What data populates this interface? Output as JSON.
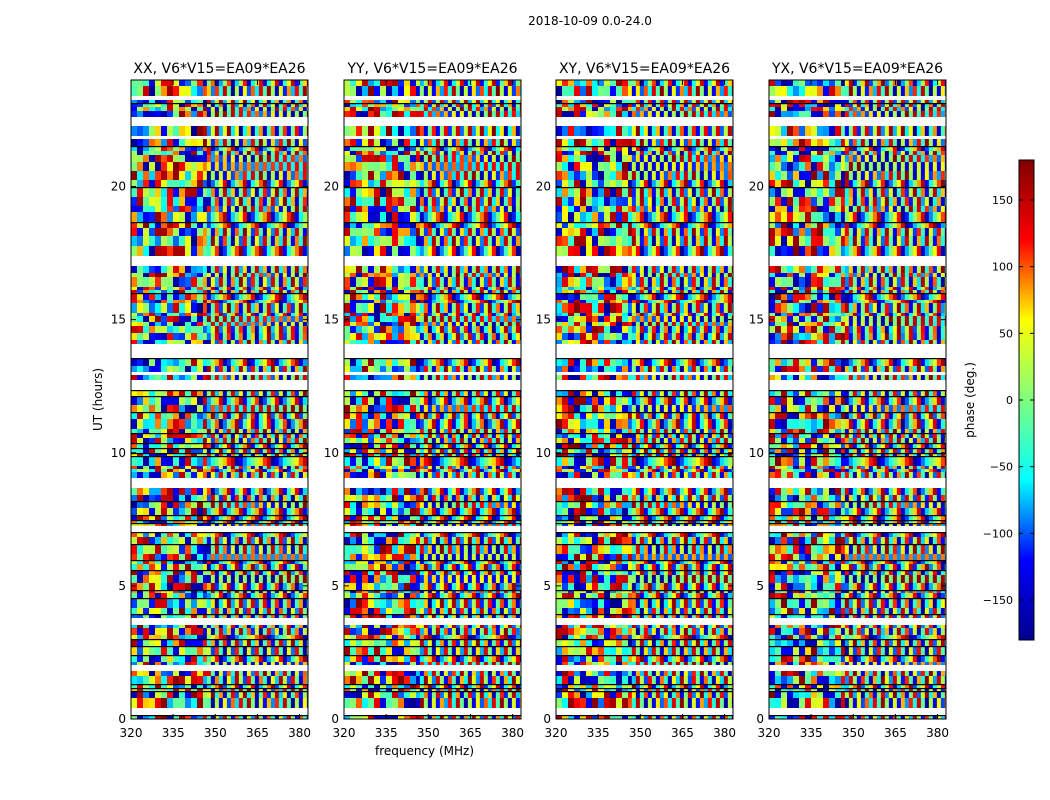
{
  "figure": {
    "suptitle": "2018-10-09 0.0-24.0",
    "shared_xlabel": "frequency (MHz)",
    "shared_ylabel": "UT (hours)"
  },
  "colorbar": {
    "label": "phase (deg.)",
    "range": [
      -180,
      180
    ],
    "ticks": [
      -150,
      -100,
      -50,
      0,
      50,
      100,
      150
    ],
    "tick_labels": [
      "−150",
      "−100",
      "−50",
      "0",
      "50",
      "100",
      "150"
    ],
    "colormap": [
      "#00008f",
      "#0000ff",
      "#00ffff",
      "#7fff7f",
      "#ffff00",
      "#ff0000",
      "#800000"
    ]
  },
  "chart_data": [
    {
      "type": "heatmap",
      "title": "XX, V6*V15=EA09*EA26",
      "xlabel": "",
      "ylabel": "UT (hours)",
      "xlim": [
        320,
        383
      ],
      "ylim": [
        0,
        24
      ],
      "xticks": [
        "320",
        "335",
        "350",
        "365",
        "380"
      ],
      "yticks": [
        "0",
        "5",
        "10",
        "15",
        "20"
      ]
    },
    {
      "type": "heatmap",
      "title": "YY, V6*V15=EA09*EA26",
      "xlabel": "frequency (MHz)",
      "ylabel": "",
      "xlim": [
        320,
        383
      ],
      "ylim": [
        0,
        24
      ],
      "xticks": [
        "320",
        "335",
        "350",
        "365",
        "380"
      ],
      "yticks": [
        "0",
        "5",
        "10",
        "15",
        "20"
      ]
    },
    {
      "type": "heatmap",
      "title": "XY, V6*V15=EA09*EA26",
      "xlabel": "",
      "ylabel": "",
      "xlim": [
        320,
        383
      ],
      "ylim": [
        0,
        24
      ],
      "xticks": [
        "320",
        "335",
        "350",
        "365",
        "380"
      ],
      "yticks": [
        "0",
        "5",
        "10",
        "15",
        "20"
      ]
    },
    {
      "type": "heatmap",
      "title": "YX, V6*V15=EA09*EA26",
      "xlabel": "",
      "ylabel": "",
      "xlim": [
        320,
        383
      ],
      "ylim": [
        0,
        24
      ],
      "xticks": [
        "320",
        "335",
        "350",
        "365",
        "380"
      ],
      "yticks": [
        "0",
        "5",
        "10",
        "15",
        "20"
      ]
    }
  ]
}
